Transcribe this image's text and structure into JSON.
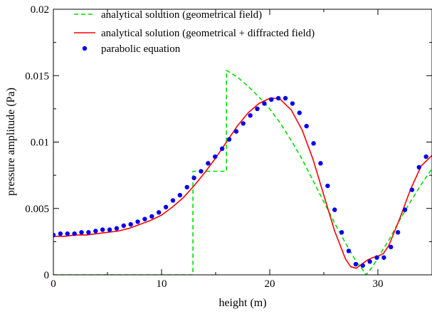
{
  "chart_data": {
    "type": "line",
    "xlabel": "height (m)",
    "ylabel": "pressure amplitude (Pa)",
    "xlim": [
      0,
      35
    ],
    "ylim": [
      0,
      0.02
    ],
    "x_ticks": [
      "0",
      "10",
      "20",
      "30"
    ],
    "y_ticks": [
      "0",
      "0.005",
      "0.01",
      "0.015",
      "0.02"
    ],
    "legend_position": "top-left",
    "series": [
      {
        "name": "analytical solution (geometrical field)",
        "style": "dashed",
        "color": "#00dd00",
        "x": [
          0,
          12.9,
          12.9,
          13.0,
          16.0,
          16.0,
          17.0,
          18.0,
          19.0,
          20.0,
          21.0,
          22.0,
          23.0,
          24.0,
          25.0,
          26.0,
          27.0,
          28.0,
          28.5,
          28.9,
          29.5,
          30.0,
          31.0,
          32.0,
          33.0,
          34.0,
          35.0
        ],
        "y": [
          0,
          0,
          0.0078,
          0.0078,
          0.0078,
          0.0154,
          0.0149,
          0.0142,
          0.0134,
          0.0125,
          0.0114,
          0.0101,
          0.0087,
          0.0071,
          0.0055,
          0.0039,
          0.0024,
          0.001,
          0.0005,
          0.0,
          0.0006,
          0.0013,
          0.0026,
          0.0041,
          0.0055,
          0.0068,
          0.008
        ]
      },
      {
        "name": "analytical solution (geometrical + diffracted field)",
        "style": "solid",
        "color": "#ff0000",
        "x": [
          0,
          1,
          2,
          3,
          4,
          5,
          6,
          7,
          8,
          9,
          10,
          11,
          12,
          13,
          14,
          15,
          16,
          17,
          18,
          19,
          20,
          20.5,
          21,
          22,
          23,
          24,
          25,
          26,
          27,
          27.5,
          28,
          28.5,
          29,
          29.5,
          30,
          30.5,
          31,
          32,
          33,
          34,
          35
        ],
        "y": [
          0.0029,
          0.0029,
          0.003,
          0.003,
          0.0031,
          0.0032,
          0.0033,
          0.0035,
          0.0038,
          0.0041,
          0.0045,
          0.0051,
          0.0058,
          0.0067,
          0.0077,
          0.0088,
          0.01,
          0.0112,
          0.0122,
          0.0129,
          0.0133,
          0.0133,
          0.0132,
          0.0124,
          0.0109,
          0.0087,
          0.006,
          0.0033,
          0.0012,
          0.0006,
          0.0005,
          0.0008,
          0.0011,
          0.0013,
          0.0014,
          0.0016,
          0.0022,
          0.0042,
          0.0064,
          0.0082,
          0.009
        ]
      },
      {
        "name": "parabolic equation",
        "style": "dots",
        "color": "#0000ee",
        "x": [
          0,
          0.65,
          1.3,
          1.95,
          2.6,
          3.25,
          3.9,
          4.55,
          5.2,
          5.85,
          6.5,
          7.15,
          7.8,
          8.45,
          9.1,
          9.75,
          10.4,
          11.05,
          11.7,
          12.35,
          13.0,
          13.65,
          14.3,
          14.95,
          15.6,
          16.25,
          16.9,
          17.55,
          18.2,
          18.85,
          19.5,
          20.15,
          20.8,
          21.45,
          22.1,
          22.75,
          23.4,
          24.05,
          24.7,
          25.35,
          26.0,
          26.65,
          27.3,
          27.95,
          28.6,
          29.25,
          29.9,
          30.55,
          31.2,
          31.85,
          32.5,
          33.15,
          33.8,
          34.45
        ],
        "y": [
          0.003,
          0.0031,
          0.0031,
          0.0031,
          0.0032,
          0.0032,
          0.0033,
          0.0034,
          0.0034,
          0.0035,
          0.0037,
          0.0038,
          0.004,
          0.0042,
          0.0044,
          0.0047,
          0.0051,
          0.0056,
          0.006,
          0.0066,
          0.0073,
          0.0078,
          0.0084,
          0.0089,
          0.0095,
          0.0102,
          0.0108,
          0.0114,
          0.012,
          0.0125,
          0.0129,
          0.0132,
          0.0133,
          0.0133,
          0.0129,
          0.0122,
          0.0112,
          0.0099,
          0.0084,
          0.0067,
          0.0049,
          0.0032,
          0.0018,
          0.0008,
          0.0007,
          0.001,
          0.0013,
          0.0013,
          0.0021,
          0.0032,
          0.0049,
          0.0064,
          0.0081,
          0.0089
        ]
      }
    ]
  }
}
